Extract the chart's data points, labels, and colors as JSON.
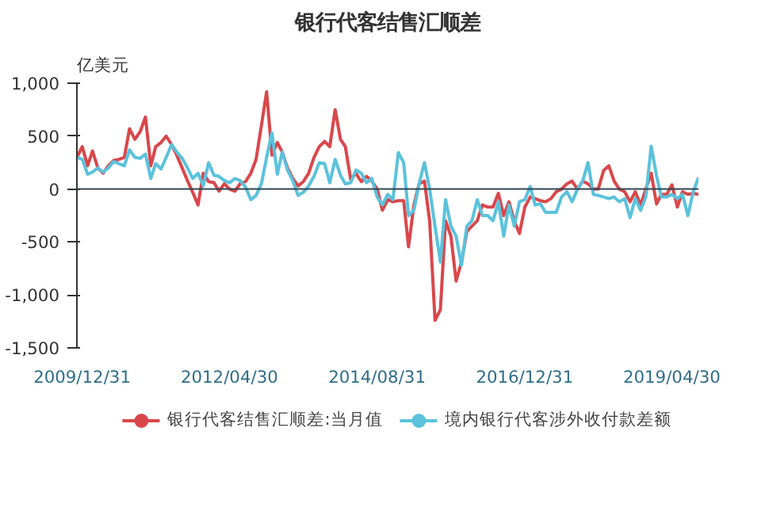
{
  "chart_data": {
    "type": "line",
    "title": "银行代客结售汇顺差",
    "ylabel": "亿美元",
    "x": [
      "2009-12",
      "2010-01",
      "2010-02",
      "2010-03",
      "2010-04",
      "2010-05",
      "2010-06",
      "2010-07",
      "2010-08",
      "2010-09",
      "2010-10",
      "2010-11",
      "2010-12",
      "2011-01",
      "2011-02",
      "2011-03",
      "2011-04",
      "2011-05",
      "2011-06",
      "2011-07",
      "2011-08",
      "2011-09",
      "2011-10",
      "2011-11",
      "2011-12",
      "2012-01",
      "2012-02",
      "2012-03",
      "2012-04",
      "2012-05",
      "2012-06",
      "2012-07",
      "2012-08",
      "2012-09",
      "2012-10",
      "2012-11",
      "2012-12",
      "2013-01",
      "2013-02",
      "2013-03",
      "2013-04",
      "2013-05",
      "2013-06",
      "2013-07",
      "2013-08",
      "2013-09",
      "2013-10",
      "2013-11",
      "2013-12",
      "2014-01",
      "2014-02",
      "2014-03",
      "2014-04",
      "2014-05",
      "2014-06",
      "2014-07",
      "2014-08",
      "2014-09",
      "2014-10",
      "2014-11",
      "2014-12",
      "2015-01",
      "2015-02",
      "2015-03",
      "2015-04",
      "2015-05",
      "2015-06",
      "2015-07",
      "2015-08",
      "2015-09",
      "2015-10",
      "2015-11",
      "2015-12",
      "2016-01",
      "2016-02",
      "2016-03",
      "2016-04",
      "2016-05",
      "2016-06",
      "2016-07",
      "2016-08",
      "2016-09",
      "2016-10",
      "2016-11",
      "2016-12",
      "2017-01",
      "2017-02",
      "2017-03",
      "2017-04",
      "2017-05",
      "2017-06",
      "2017-07",
      "2017-08",
      "2017-09",
      "2017-10",
      "2017-11",
      "2017-12",
      "2018-01",
      "2018-02",
      "2018-03",
      "2018-04",
      "2018-05",
      "2018-06",
      "2018-07",
      "2018-08",
      "2018-09",
      "2018-10",
      "2018-11",
      "2018-12",
      "2019-01",
      "2019-02",
      "2019-03",
      "2019-04",
      "2019-05",
      "2019-06",
      "2019-07",
      "2019-08",
      "2019-09",
      "2019-10"
    ],
    "xlim": [
      "2009-12",
      "2019-10"
    ],
    "xticks": [
      {
        "value": "2009-12-31",
        "label": "2009/12/31"
      },
      {
        "value": "2012-04-30",
        "label": "2012/04/30"
      },
      {
        "value": "2014-08-31",
        "label": "2014/08/31"
      },
      {
        "value": "2016-12-31",
        "label": "2016/12/31"
      },
      {
        "value": "2019-04-30",
        "label": "2019/04/30"
      }
    ],
    "ylim": [
      -1500,
      1000
    ],
    "yticks": [
      {
        "value": -1500,
        "label": "-1,500"
      },
      {
        "value": -1000,
        "label": "-1,000"
      },
      -500,
      0,
      500,
      {
        "value": 1000,
        "label": "1,000"
      }
    ],
    "grid": false,
    "legend": "bottom",
    "marker": "none",
    "line_style": "solid",
    "ref_lines": [
      {
        "axis": "y",
        "value": 0,
        "color": "#2f4554"
      }
    ],
    "series": [
      {
        "name": "银行代客结售汇顺差:当月值",
        "color": "#d9474b",
        "values": [
          300,
          400,
          220,
          360,
          200,
          150,
          220,
          270,
          280,
          300,
          570,
          470,
          540,
          680,
          220,
          400,
          440,
          500,
          420,
          320,
          200,
          80,
          -30,
          -150,
          150,
          70,
          60,
          -20,
          50,
          0,
          -20,
          50,
          70,
          150,
          280,
          600,
          920,
          320,
          440,
          350,
          200,
          100,
          30,
          70,
          150,
          300,
          400,
          450,
          400,
          750,
          470,
          400,
          90,
          150,
          70,
          120,
          75,
          0,
          -200,
          -100,
          -120,
          -110,
          -110,
          -545,
          -150,
          50,
          75,
          -300,
          -1240,
          -1140,
          -300,
          -445,
          -870,
          -690,
          -400,
          -350,
          -300,
          -150,
          -170,
          -170,
          -40,
          -250,
          -120,
          -300,
          -420,
          -170,
          -75,
          -90,
          -110,
          -120,
          -90,
          -25,
          0,
          50,
          75,
          0,
          75,
          50,
          0,
          0,
          175,
          220,
          75,
          0,
          -25,
          -120,
          -25,
          -150,
          0,
          150,
          -140,
          -50,
          -50,
          40,
          -170,
          -25,
          -50,
          -40,
          -50
        ]
      },
      {
        "name": "境内银行代客涉外收付款差额",
        "color": "#5bc2dc",
        "values": [
          300,
          280,
          140,
          160,
          200,
          160,
          200,
          260,
          240,
          220,
          370,
          300,
          290,
          330,
          100,
          240,
          190,
          300,
          420,
          350,
          290,
          200,
          100,
          150,
          30,
          250,
          130,
          120,
          80,
          60,
          100,
          80,
          20,
          -100,
          -60,
          50,
          300,
          530,
          140,
          350,
          180,
          80,
          -60,
          -30,
          30,
          120,
          250,
          240,
          60,
          280,
          130,
          50,
          60,
          180,
          150,
          60,
          100,
          -75,
          -150,
          -50,
          -100,
          345,
          250,
          -250,
          -200,
          50,
          250,
          0,
          -350,
          -690,
          -100,
          -350,
          -445,
          -720,
          -350,
          -300,
          -100,
          -250,
          -250,
          -300,
          -120,
          -445,
          -150,
          -350,
          -120,
          -100,
          25,
          -150,
          -140,
          -220,
          -220,
          -220,
          -75,
          -25,
          -120,
          0,
          75,
          250,
          -50,
          -60,
          -75,
          -90,
          -75,
          -120,
          -90,
          -270,
          -90,
          -200,
          -75,
          405,
          125,
          -75,
          -75,
          -50,
          -90,
          -50,
          -250,
          -25,
          110
        ]
      }
    ]
  }
}
